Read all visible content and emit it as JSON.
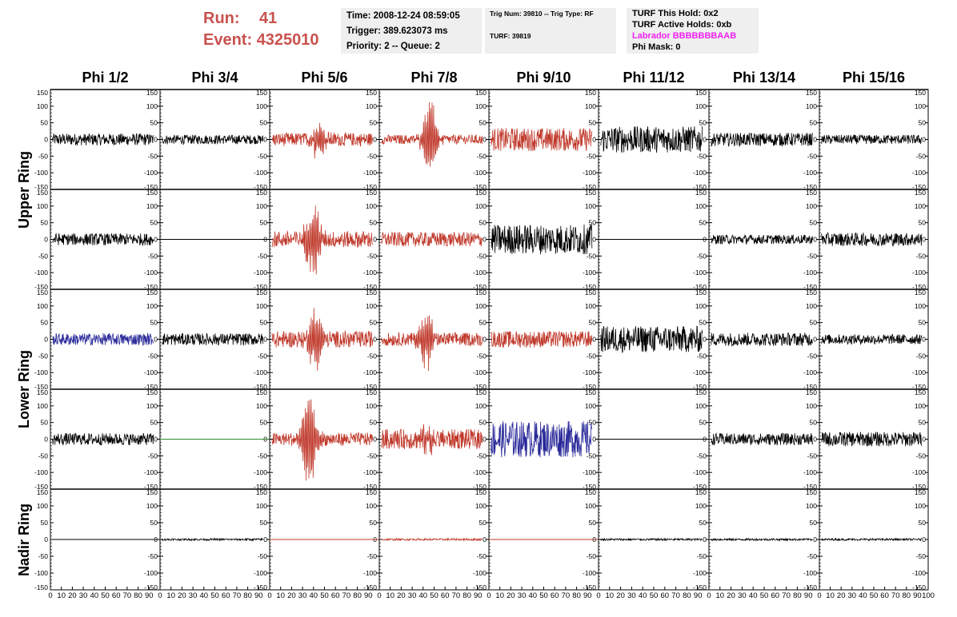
{
  "header": {
    "run_label": "Run:",
    "run_value": "41",
    "event_label": "Event:",
    "event_value": "4325010"
  },
  "info_time": {
    "time": "Time: 2008-12-24 08:59:05",
    "trigger": "Trigger: 389.623073 ms",
    "priority": "Priority: 2 -- Queue: 2"
  },
  "info_trig": {
    "line1": "Trig Num: 39810 -- Trig Type: RF",
    "line2": "TURF: 39819"
  },
  "info_turf": {
    "hold": "TURF This Hold: 0x2",
    "active": "TURF Active Holds: 0xb",
    "labrador": "Labrador BBBBBBBAAB",
    "phimask": "Phi Mask: 0"
  },
  "columns": [
    "Phi 1/2",
    "Phi 3/4",
    "Phi 5/6",
    "Phi 7/8",
    "Phi 9/10",
    "Phi 11/12",
    "Phi 13/14",
    "Phi 15/16"
  ],
  "row_labels": [
    "Upper Ring",
    "Lower Ring",
    "Nadir Ring"
  ],
  "colors": {
    "black": "#000000",
    "red": "#c0392b",
    "blue": "#2a2a9a",
    "green": "#2e8b2e",
    "run_text": "#c9524e",
    "labrador_text": "#ee22ee",
    "info_bg": "#efefef"
  },
  "chart_data": {
    "type": "line",
    "subplot_rows": 5,
    "subplot_cols": 8,
    "xlim": [
      0,
      100
    ],
    "ylim": [
      -150,
      150
    ],
    "xticks": [
      "0",
      "10",
      "20",
      "30",
      "40",
      "50",
      "60",
      "70",
      "80",
      "90",
      "100"
    ],
    "yticks_left": [
      "150",
      "100",
      "50",
      "0",
      "-50",
      "-100",
      "-150"
    ],
    "yticks_right": [
      "150",
      "100",
      "50",
      "0",
      "-50",
      "-100",
      "-150"
    ],
    "cells": [
      [
        {
          "color": "black",
          "amp": 18,
          "burst": 0,
          "center": 0
        },
        {
          "color": "black",
          "amp": 14,
          "burst": 0,
          "center": 0
        },
        {
          "color": "red",
          "amp": 20,
          "burst": 55,
          "center": 45
        },
        {
          "color": "red",
          "amp": 14,
          "burst": 130,
          "center": 46
        },
        {
          "color": "red",
          "amp": 35,
          "burst": 0,
          "center": 0
        },
        {
          "color": "black",
          "amp": 40,
          "burst": 0,
          "center": 0
        },
        {
          "color": "black",
          "amp": 20,
          "burst": 0,
          "center": 0
        },
        {
          "color": "black",
          "amp": 14,
          "burst": 0,
          "center": 0
        }
      ],
      [
        {
          "color": "black",
          "amp": 18,
          "burst": 0,
          "center": 0
        },
        {
          "color": "black",
          "amp": 0,
          "burst": 0,
          "center": 0
        },
        {
          "color": "red",
          "amp": 25,
          "burst": 130,
          "center": 40
        },
        {
          "color": "red",
          "amp": 22,
          "burst": 0,
          "center": 0
        },
        {
          "color": "black",
          "amp": 45,
          "burst": 0,
          "center": 0
        },
        {
          "color": "black",
          "amp": 0,
          "burst": 0,
          "center": 0
        },
        {
          "color": "black",
          "amp": 14,
          "burst": 0,
          "center": 0
        },
        {
          "color": "black",
          "amp": 20,
          "burst": 0,
          "center": 0
        }
      ],
      [
        {
          "color": "blue",
          "amp": 18,
          "burst": 0,
          "center": 0
        },
        {
          "color": "black",
          "amp": 18,
          "burst": 0,
          "center": 0
        },
        {
          "color": "red",
          "amp": 25,
          "burst": 90,
          "center": 42
        },
        {
          "color": "red",
          "amp": 20,
          "burst": 90,
          "center": 43
        },
        {
          "color": "red",
          "amp": 25,
          "burst": 0,
          "center": 0
        },
        {
          "color": "black",
          "amp": 40,
          "burst": 0,
          "center": 0
        },
        {
          "color": "black",
          "amp": 20,
          "burst": 0,
          "center": 0
        },
        {
          "color": "black",
          "amp": 15,
          "burst": 0,
          "center": 0
        }
      ],
      [
        {
          "color": "black",
          "amp": 18,
          "burst": 0,
          "center": 0
        },
        {
          "color": "green",
          "amp": 0,
          "burst": 0,
          "center": 0
        },
        {
          "color": "red",
          "amp": 20,
          "burst": 150,
          "center": 36
        },
        {
          "color": "red",
          "amp": 30,
          "burst": 40,
          "center": 45
        },
        {
          "color": "blue",
          "amp": 55,
          "burst": 0,
          "center": 0
        },
        {
          "color": "black",
          "amp": 0,
          "burst": 0,
          "center": 0
        },
        {
          "color": "black",
          "amp": 18,
          "burst": 0,
          "center": 0
        },
        {
          "color": "black",
          "amp": 22,
          "burst": 0,
          "center": 0
        }
      ],
      [
        {
          "color": "black",
          "amp": 0,
          "burst": 0,
          "center": 0
        },
        {
          "color": "black",
          "amp": 3,
          "burst": 0,
          "center": 0
        },
        {
          "color": "red",
          "amp": 0,
          "burst": 0,
          "center": 0
        },
        {
          "color": "red",
          "amp": 3,
          "burst": 0,
          "center": 0
        },
        {
          "color": "red",
          "amp": 0,
          "burst": 0,
          "center": 0
        },
        {
          "color": "black",
          "amp": 3,
          "burst": 0,
          "center": 0
        },
        {
          "color": "black",
          "amp": 3,
          "burst": 0,
          "center": 0
        },
        {
          "color": "black",
          "amp": 3,
          "burst": 0,
          "center": 0
        }
      ]
    ]
  }
}
